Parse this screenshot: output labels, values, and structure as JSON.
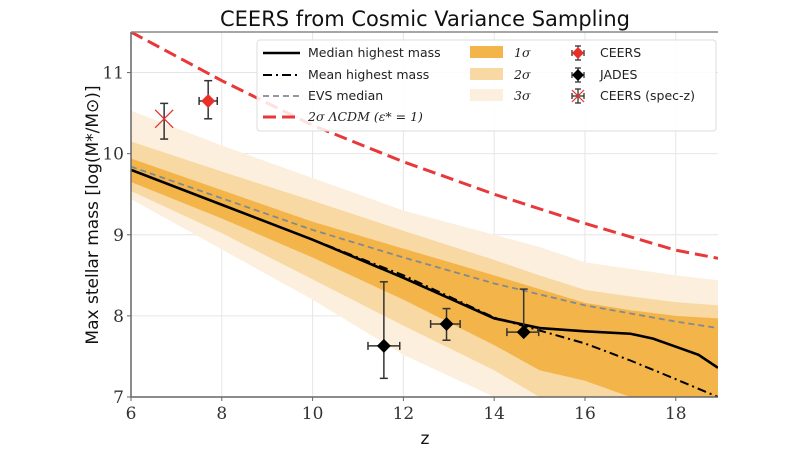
{
  "chart_data": {
    "type": "line",
    "title": "CEERS from Cosmic Variance Sampling",
    "xlabel": "z",
    "ylabel": "Max stellar mass [log(M*/M⊙)]",
    "xlim": [
      6,
      18.93
    ],
    "ylim": [
      7,
      11.5
    ],
    "xticks": [
      6,
      8,
      10,
      12,
      14,
      16,
      18
    ],
    "yticks": [
      7,
      8,
      9,
      10,
      11
    ],
    "grid": true,
    "legend_position": "top-right",
    "colors": {
      "sigma1": "#f3b44a",
      "sigma2": "#f8d9a4",
      "sigma3": "#fcefdd",
      "median": "#000000",
      "mean": "#000000",
      "evs": "#808a94",
      "lcdm": "#e8383a",
      "ceers": "#e8302a",
      "jades": "#000000"
    },
    "bands": {
      "z": [
        6,
        8,
        10,
        12,
        14,
        15,
        16,
        17,
        18,
        18.93
      ],
      "sigma3_upper": [
        10.53,
        10.1,
        9.7,
        9.3,
        9.0,
        8.85,
        8.66,
        8.58,
        8.5,
        8.44
      ],
      "sigma2_upper": [
        10.15,
        9.78,
        9.42,
        9.05,
        8.69,
        8.5,
        8.32,
        8.24,
        8.17,
        8.13
      ],
      "sigma1_upper": [
        9.94,
        9.55,
        9.16,
        8.83,
        8.5,
        8.33,
        8.16,
        8.07,
        8.0,
        7.97
      ],
      "sigma1_lower": [
        9.65,
        9.2,
        8.72,
        8.2,
        7.64,
        7.33,
        7.2,
        7.0,
        7.0,
        7.0
      ],
      "sigma2_lower": [
        9.54,
        9.02,
        8.45,
        7.88,
        7.33,
        7.0,
        7.0,
        7.0,
        7.0,
        7.0
      ],
      "sigma3_lower": [
        9.44,
        8.82,
        8.2,
        7.52,
        7.0,
        7.0,
        7.0,
        7.0,
        7.0,
        7.0
      ]
    },
    "series": [
      {
        "name": "Median highest mass",
        "style": "solid",
        "z": [
          6,
          8,
          10,
          12,
          13,
          14,
          15,
          16,
          17,
          17.5,
          18,
          18.5,
          18.93
        ],
        "values": [
          9.8,
          9.37,
          8.94,
          8.47,
          8.22,
          7.97,
          7.85,
          7.81,
          7.78,
          7.72,
          7.62,
          7.52,
          7.36
        ]
      },
      {
        "name": "Mean highest mass",
        "style": "dashdot",
        "z": [
          6,
          8,
          10,
          12,
          13,
          14,
          15,
          16,
          17,
          18,
          18.93
        ],
        "values": [
          9.8,
          9.37,
          8.94,
          8.5,
          8.24,
          7.98,
          7.82,
          7.66,
          7.45,
          7.22,
          7.0
        ]
      },
      {
        "name": "EVS median",
        "style": "dashed",
        "z": [
          6,
          8,
          10,
          12,
          14,
          16,
          18,
          18.93
        ],
        "values": [
          9.84,
          9.45,
          9.06,
          8.72,
          8.4,
          8.13,
          7.93,
          7.85
        ]
      },
      {
        "name": "2σ ΛCDM (ε* = 1)",
        "style": "dashed-thick",
        "z": [
          6,
          8,
          10,
          12,
          14,
          16,
          18,
          18.93
        ],
        "values": [
          11.5,
          10.9,
          10.35,
          9.9,
          9.5,
          9.14,
          8.81,
          8.71
        ]
      }
    ],
    "points": [
      {
        "name": "CEERS",
        "marker": "diamond",
        "color": "#e8302a",
        "data": [
          {
            "z": 7.7,
            "m": 10.65,
            "z_err": [
              0.2,
              0.2
            ],
            "m_err": [
              0.22,
              0.25
            ]
          }
        ]
      },
      {
        "name": "JADES",
        "marker": "diamond",
        "color": "#000000",
        "data": [
          {
            "z": 11.57,
            "m": 7.63,
            "z_err": [
              0.35,
              0.35
            ],
            "m_err": [
              0.4,
              0.79
            ]
          },
          {
            "z": 12.95,
            "m": 7.9,
            "z_err": [
              0.35,
              0.3
            ],
            "m_err": [
              0.2,
              0.19
            ]
          },
          {
            "z": 14.65,
            "m": 7.8,
            "z_err": [
              0.37,
              0.33
            ],
            "m_err": [
              0.0,
              0.53
            ]
          }
        ]
      },
      {
        "name": "CEERS (spec-z)",
        "marker": "x",
        "color": "#e8302a",
        "data": [
          {
            "z": 6.73,
            "m": 10.43,
            "z_err": [
              0,
              0
            ],
            "m_err": [
              0.25,
              0.19
            ]
          }
        ]
      }
    ],
    "legend": {
      "col1": [
        {
          "label": "Median highest mass",
          "key": "median"
        },
        {
          "label": "Mean highest mass",
          "key": "mean"
        },
        {
          "label": "EVS median",
          "key": "evs"
        },
        {
          "label": "2σ ΛCDM (ε* = 1)",
          "key": "lcdm"
        }
      ],
      "col2": [
        {
          "label": "1σ",
          "key": "sigma1"
        },
        {
          "label": "2σ",
          "key": "sigma2"
        },
        {
          "label": "3σ",
          "key": "sigma3"
        }
      ],
      "col3": [
        {
          "label": "CEERS",
          "key": "ceers"
        },
        {
          "label": "JADES",
          "key": "jades"
        },
        {
          "label": "CEERS (spec-z)",
          "key": "ceers-specz"
        }
      ]
    }
  }
}
